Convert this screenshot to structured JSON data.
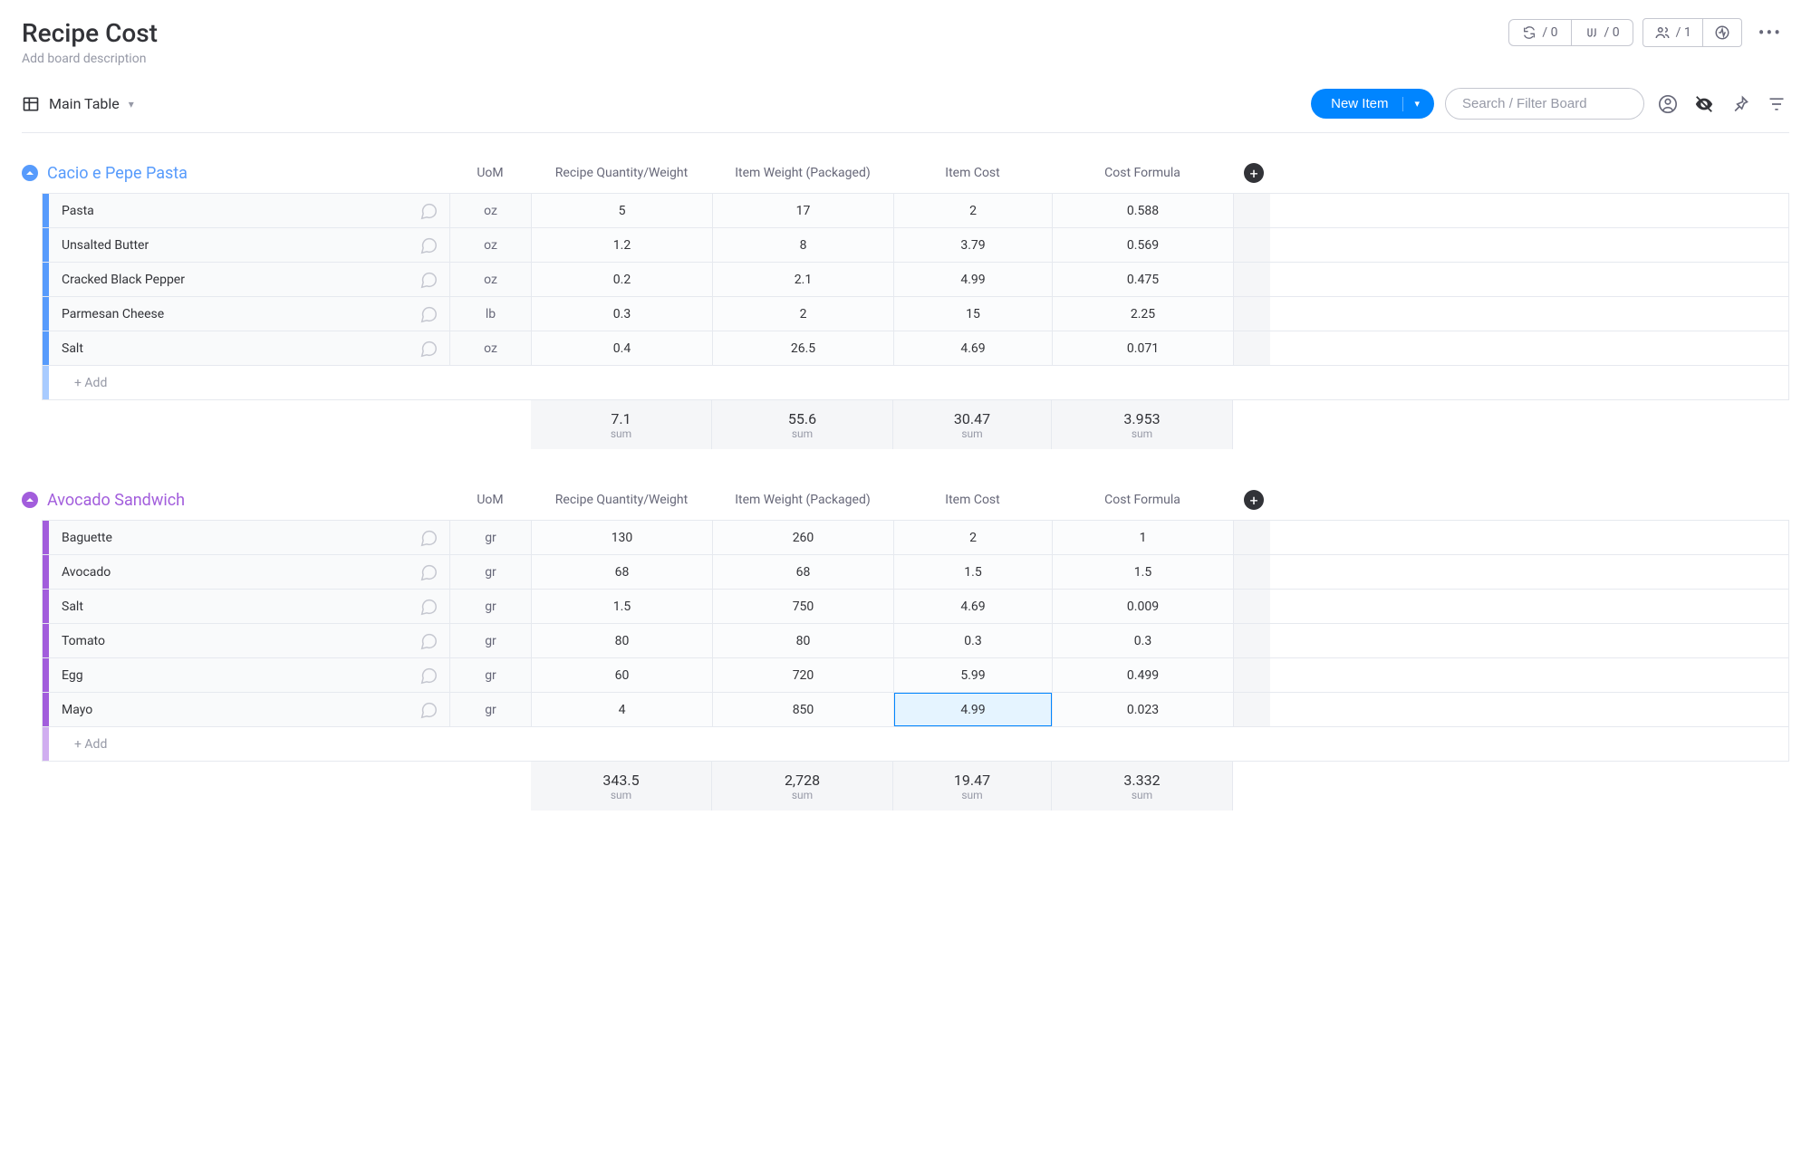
{
  "board": {
    "title": "Recipe Cost",
    "description_placeholder": "Add board description"
  },
  "header_stats": {
    "automations": "0",
    "integrations": "0",
    "members": "1"
  },
  "toolbar": {
    "view_name": "Main Table",
    "new_item_label": "New Item",
    "search_placeholder": "Search / Filter Board"
  },
  "columns": {
    "uom": "UoM",
    "qty": "Recipe Quantity/Weight",
    "pkg": "Item Weight (Packaged)",
    "cost": "Item Cost",
    "formula": "Cost Formula"
  },
  "sum_label": "sum",
  "add_row_label": "+ Add",
  "groups": [
    {
      "id": "g1",
      "title": "Cacio e Pepe Pasta",
      "color": "#579bfc",
      "color_light": "#a8cbff",
      "title_color": "#579bfc",
      "rows": [
        {
          "name": "Pasta",
          "uom": "oz",
          "qty": "5",
          "pkg": "17",
          "cost": "2",
          "formula": "0.588"
        },
        {
          "name": "Unsalted Butter",
          "uom": "oz",
          "qty": "1.2",
          "pkg": "8",
          "cost": "3.79",
          "formula": "0.569"
        },
        {
          "name": "Cracked Black Pepper",
          "uom": "oz",
          "qty": "0.2",
          "pkg": "2.1",
          "cost": "4.99",
          "formula": "0.475"
        },
        {
          "name": "Parmesan Cheese",
          "uom": "lb",
          "qty": "0.3",
          "pkg": "2",
          "cost": "15",
          "formula": "2.25"
        },
        {
          "name": "Salt",
          "uom": "oz",
          "qty": "0.4",
          "pkg": "26.5",
          "cost": "4.69",
          "formula": "0.071"
        }
      ],
      "sums": {
        "qty": "7.1",
        "pkg": "55.6",
        "cost": "30.47",
        "formula": "3.953"
      }
    },
    {
      "id": "g2",
      "title": "Avocado Sandwich",
      "color": "#a25ddc",
      "color_light": "#d0aef0",
      "title_color": "#a25ddc",
      "rows": [
        {
          "name": "Baguette",
          "uom": "gr",
          "qty": "130",
          "pkg": "260",
          "cost": "2",
          "formula": "1"
        },
        {
          "name": "Avocado",
          "uom": "gr",
          "qty": "68",
          "pkg": "68",
          "cost": "1.5",
          "formula": "1.5"
        },
        {
          "name": "Salt",
          "uom": "gr",
          "qty": "1.5",
          "pkg": "750",
          "cost": "4.69",
          "formula": "0.009"
        },
        {
          "name": "Tomato",
          "uom": "gr",
          "qty": "80",
          "pkg": "80",
          "cost": "0.3",
          "formula": "0.3"
        },
        {
          "name": "Egg",
          "uom": "gr",
          "qty": "60",
          "pkg": "720",
          "cost": "5.99",
          "formula": "0.499"
        },
        {
          "name": "Mayo",
          "uom": "gr",
          "qty": "4",
          "pkg": "850",
          "cost": "4.99",
          "formula": "0.023",
          "cost_selected": true
        }
      ],
      "sums": {
        "qty": "343.5",
        "pkg": "2,728",
        "cost": "19.47",
        "formula": "3.332"
      }
    }
  ]
}
